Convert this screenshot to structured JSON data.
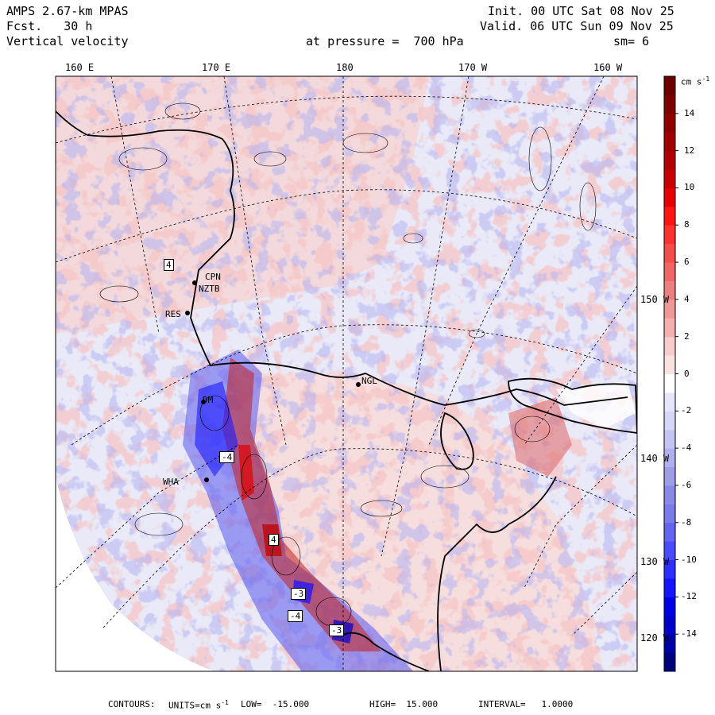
{
  "header": {
    "model": "AMPS 2.67-km MPAS",
    "forecast": "Fcst.   30 h",
    "field": "Vertical velocity",
    "init": "Init. 00 UTC Sat 08 Nov 25",
    "valid": "Valid. 06 UTC Sun 09 Nov 25",
    "pressure": "at pressure =  700 hPa",
    "smoothing": "sm= 6"
  },
  "longitude_labels": [
    "160 E",
    "170 E",
    "180",
    "170 W",
    "160 W"
  ],
  "latitude_labels": [
    "150 W",
    "140 W",
    "130 W",
    "120 W"
  ],
  "colorbar": {
    "units": "cm s",
    "units_exp": "-1",
    "ticks": [
      "14",
      "12",
      "10",
      "8",
      "6",
      "4",
      "2",
      "0",
      "-2",
      "-4",
      "-6",
      "-8",
      "-10",
      "-12",
      "-14"
    ],
    "levels": [
      -16,
      -15,
      -14,
      -13,
      -12,
      -11,
      -10,
      -9,
      -8,
      -7,
      -6,
      -5,
      -4,
      -3,
      -2,
      -1,
      0,
      1,
      2,
      3,
      4,
      5,
      6,
      7,
      8,
      9,
      10,
      11,
      12,
      13,
      14,
      15,
      16
    ],
    "colors": [
      "#00007f",
      "#0000a8",
      "#0000c8",
      "#0000e6",
      "#1414ff",
      "#2e2eff",
      "#4a4aff",
      "#6464f0",
      "#7b7be8",
      "#8a8ae6",
      "#9d9de8",
      "#b0b0ee",
      "#c4c4f2",
      "#d6d6f7",
      "#e6e6fb",
      "#ffffff",
      "#fbe2e2",
      "#f7cccc",
      "#f2b0b0",
      "#ee9898",
      "#ea8080",
      "#f06666",
      "#f54c4c",
      "#fa3232",
      "#ff1414",
      "#e60000",
      "#c80000",
      "#b00000",
      "#a00000",
      "#900000",
      "#7f0000",
      "#6a0000"
    ]
  },
  "stations": [
    {
      "name": "4",
      "boxed": true
    },
    {
      "name": "CPN"
    },
    {
      "name": "NZTB"
    },
    {
      "name": "RES"
    },
    {
      "name": "NGL"
    },
    {
      "name": "DM"
    },
    {
      "name": "WHA"
    },
    {
      "name": "-4",
      "boxed": true
    },
    {
      "name": "4",
      "boxed": true
    },
    {
      "name": "-3",
      "boxed": true
    },
    {
      "name": "-4",
      "boxed": true
    },
    {
      "name": "-3",
      "boxed": true
    }
  ],
  "footer": {
    "contours": "CONTOURS:",
    "units": "UNITS=cm s",
    "units_exp": "-1",
    "low": "LOW=  -15.000",
    "high": "HIGH=  15.000",
    "interval": "INTERVAL=   1.0000"
  },
  "colors": {
    "land_outline": "#000000",
    "up": "#e07070",
    "down": "#6a6ae8",
    "neutral": "#e8e8f6"
  }
}
